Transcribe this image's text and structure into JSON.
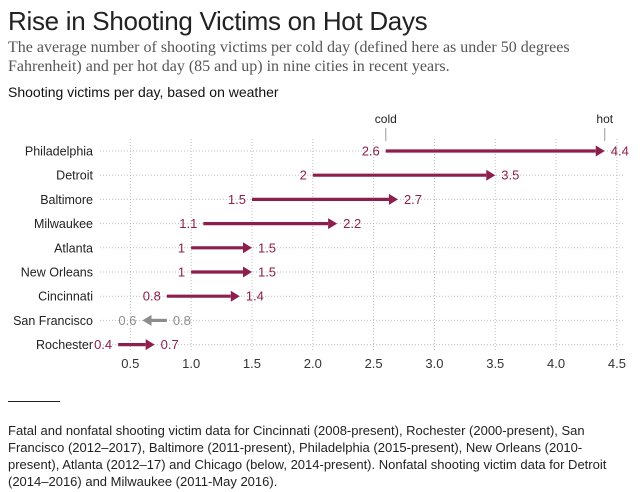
{
  "header": {
    "title": "Rise in Shooting Victims on Hot Days",
    "subtitle": "The average number of shooting victims per cold day (defined here as under 50 degrees Fahrenheit) and per hot day (85 and up) in nine cities in recent years.",
    "chart_label": "Shooting victims per day, based on weather"
  },
  "chart_data": {
    "type": "arrow-range",
    "series": [
      {
        "name": "cold"
      },
      {
        "name": "hot"
      }
    ],
    "categories": [
      "Philadelphia",
      "Detroit",
      "Baltimore",
      "Milwaukee",
      "Atlanta",
      "New Orleans",
      "Cincinnati",
      "San Francisco",
      "Rochester"
    ],
    "rows": [
      {
        "city": "Philadelphia",
        "cold": 2.6,
        "hot": 4.4,
        "cold_label": "2.6",
        "hot_label": "4.4"
      },
      {
        "city": "Detroit",
        "cold": 2,
        "hot": 3.5,
        "cold_label": "2",
        "hot_label": "3.5"
      },
      {
        "city": "Baltimore",
        "cold": 1.5,
        "hot": 2.7,
        "cold_label": "1.5",
        "hot_label": "2.7"
      },
      {
        "city": "Milwaukee",
        "cold": 1.1,
        "hot": 2.2,
        "cold_label": "1.1",
        "hot_label": "2.2"
      },
      {
        "city": "Atlanta",
        "cold": 1,
        "hot": 1.5,
        "cold_label": "1",
        "hot_label": "1.5"
      },
      {
        "city": "New Orleans",
        "cold": 1,
        "hot": 1.5,
        "cold_label": "1",
        "hot_label": "1.5"
      },
      {
        "city": "Cincinnati",
        "cold": 0.8,
        "hot": 1.4,
        "cold_label": "0.8",
        "hot_label": "1.4"
      },
      {
        "city": "San Francisco",
        "cold": 0.8,
        "hot": 0.6,
        "cold_label": "0.8",
        "hot_label": "0.6"
      },
      {
        "city": "Rochester",
        "cold": 0.4,
        "hot": 0.7,
        "cold_label": "0.4",
        "hot_label": "0.7"
      }
    ],
    "x_ticks": [
      "0.5",
      "1.0",
      "1.5",
      "2.0",
      "2.5",
      "3.0",
      "3.5",
      "4.0",
      "4.5"
    ],
    "xlim": [
      0.3,
      4.55
    ],
    "grid": true,
    "colors": {
      "increase": "#8e1f4c",
      "decrease": "#8c8c8c",
      "grid": "#bdbdbd"
    }
  },
  "footnote": "Fatal and nonfatal shooting victim data for Cincinnati (2008-present), Rochester (2000-present), San Francisco (2012–2017), Baltimore (2011-present), Philadelphia (2015-present), New Orleans (2010-present), Atlanta (2012–17) and Chicago (below, 2014-present). Nonfatal shooting victim data for Detroit (2014–2016) and Milwaukee (2011-May 2016)."
}
